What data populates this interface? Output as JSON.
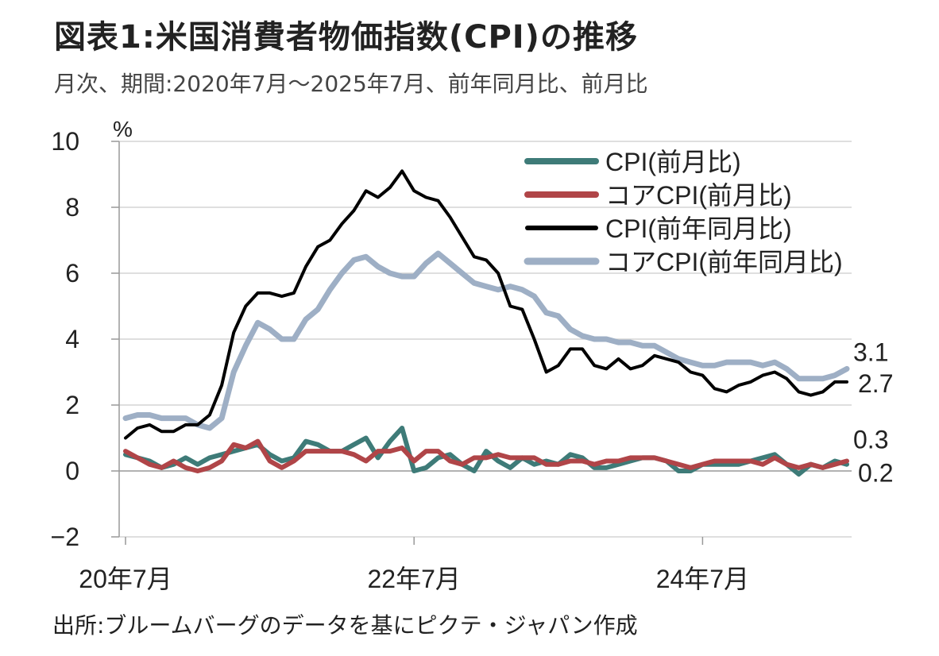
{
  "header": {
    "title": "図表1:米国消費者物価指数(CPI)の推移",
    "subtitle": "月次、期間:2020年7月～2025年7月、前年同月比、前月比"
  },
  "footer": {
    "source": "出所:ブルームバーグのデータを基にピクテ・ジャパン作成"
  },
  "colors": {
    "cpi_mom": "#3e7b78",
    "core_mom": "#b04548",
    "cpi_yoy": "#000000",
    "core_yoy": "#9eafc5",
    "grid": "#cccccc"
  },
  "chart_data": {
    "type": "line",
    "title": "図表1:米国消費者物価指数(CPI)の推移",
    "subtitle": "月次、期間:2020年7月～2025年7月、前年同月比、前月比",
    "ylabel": "%",
    "xlabel": "",
    "ylim": [
      -2,
      10
    ],
    "y_ticks": [
      "10",
      "8",
      "6",
      "4",
      "2",
      "0",
      "−2"
    ],
    "x_tick_labels": [
      "20年7月",
      "22年7月",
      "24年7月"
    ],
    "x_tick_months": [
      "2020-07",
      "2022-07",
      "2024-07"
    ],
    "x": [
      "2020-07",
      "2020-08",
      "2020-09",
      "2020-10",
      "2020-11",
      "2020-12",
      "2021-01",
      "2021-02",
      "2021-03",
      "2021-04",
      "2021-05",
      "2021-06",
      "2021-07",
      "2021-08",
      "2021-09",
      "2021-10",
      "2021-11",
      "2021-12",
      "2022-01",
      "2022-02",
      "2022-03",
      "2022-04",
      "2022-05",
      "2022-06",
      "2022-07",
      "2022-08",
      "2022-09",
      "2022-10",
      "2022-11",
      "2022-12",
      "2023-01",
      "2023-02",
      "2023-03",
      "2023-04",
      "2023-05",
      "2023-06",
      "2023-07",
      "2023-08",
      "2023-09",
      "2023-10",
      "2023-11",
      "2023-12",
      "2024-01",
      "2024-02",
      "2024-03",
      "2024-04",
      "2024-05",
      "2024-06",
      "2024-07",
      "2024-08",
      "2024-09",
      "2024-10",
      "2024-11",
      "2024-12",
      "2025-01",
      "2025-02",
      "2025-03",
      "2025-04",
      "2025-05",
      "2025-06",
      "2025-07"
    ],
    "series": [
      {
        "name": "CPI(前月比)",
        "color_key": "cpi_mom",
        "values": [
          0.5,
          0.4,
          0.3,
          0.1,
          0.2,
          0.4,
          0.2,
          0.4,
          0.5,
          0.6,
          0.7,
          0.8,
          0.5,
          0.3,
          0.4,
          0.9,
          0.8,
          0.6,
          0.6,
          0.8,
          1.0,
          0.4,
          0.9,
          1.3,
          0.0,
          0.1,
          0.4,
          0.5,
          0.2,
          0.0,
          0.6,
          0.3,
          0.1,
          0.4,
          0.2,
          0.3,
          0.2,
          0.5,
          0.4,
          0.1,
          0.1,
          0.2,
          0.3,
          0.4,
          0.4,
          0.3,
          0.0,
          0.0,
          0.2,
          0.2,
          0.2,
          0.2,
          0.3,
          0.4,
          0.5,
          0.2,
          -0.1,
          0.2,
          0.1,
          0.3,
          0.2
        ]
      },
      {
        "name": "コアCPI(前月比)",
        "color_key": "core_mom",
        "values": [
          0.6,
          0.4,
          0.2,
          0.1,
          0.3,
          0.1,
          0.0,
          0.1,
          0.3,
          0.8,
          0.7,
          0.9,
          0.3,
          0.1,
          0.3,
          0.6,
          0.6,
          0.6,
          0.6,
          0.5,
          0.3,
          0.6,
          0.6,
          0.7,
          0.3,
          0.6,
          0.6,
          0.3,
          0.2,
          0.4,
          0.4,
          0.5,
          0.4,
          0.4,
          0.4,
          0.2,
          0.2,
          0.3,
          0.3,
          0.2,
          0.3,
          0.3,
          0.4,
          0.4,
          0.4,
          0.3,
          0.2,
          0.1,
          0.2,
          0.3,
          0.3,
          0.3,
          0.3,
          0.2,
          0.4,
          0.2,
          0.1,
          0.2,
          0.1,
          0.2,
          0.3
        ]
      },
      {
        "name": "CPI(前年同月比)",
        "color_key": "cpi_yoy",
        "end_label": "2.7",
        "values": [
          1.0,
          1.3,
          1.4,
          1.2,
          1.2,
          1.4,
          1.4,
          1.7,
          2.6,
          4.2,
          5.0,
          5.4,
          5.4,
          5.3,
          5.4,
          6.2,
          6.8,
          7.0,
          7.5,
          7.9,
          8.5,
          8.3,
          8.6,
          9.1,
          8.5,
          8.3,
          8.2,
          7.7,
          7.1,
          6.5,
          6.4,
          6.0,
          5.0,
          4.9,
          4.0,
          3.0,
          3.2,
          3.7,
          3.7,
          3.2,
          3.1,
          3.4,
          3.1,
          3.2,
          3.5,
          3.4,
          3.3,
          3.0,
          2.9,
          2.5,
          2.4,
          2.6,
          2.7,
          2.9,
          3.0,
          2.8,
          2.4,
          2.3,
          2.4,
          2.7,
          2.7
        ]
      },
      {
        "name": "コアCPI(前年同月比)",
        "color_key": "core_yoy",
        "end_label": "3.1",
        "values": [
          1.6,
          1.7,
          1.7,
          1.6,
          1.6,
          1.6,
          1.4,
          1.3,
          1.6,
          3.0,
          3.8,
          4.5,
          4.3,
          4.0,
          4.0,
          4.6,
          4.9,
          5.5,
          6.0,
          6.4,
          6.5,
          6.2,
          6.0,
          5.9,
          5.9,
          6.3,
          6.6,
          6.3,
          6.0,
          5.7,
          5.6,
          5.5,
          5.6,
          5.5,
          5.3,
          4.8,
          4.7,
          4.3,
          4.1,
          4.0,
          4.0,
          3.9,
          3.9,
          3.8,
          3.8,
          3.6,
          3.4,
          3.3,
          3.2,
          3.2,
          3.3,
          3.3,
          3.3,
          3.2,
          3.3,
          3.1,
          2.8,
          2.8,
          2.8,
          2.9,
          3.1
        ]
      }
    ],
    "end_labels_mom": [
      "0.3",
      "0.2"
    ],
    "legend": {
      "position": "top-right"
    },
    "grid": true
  }
}
